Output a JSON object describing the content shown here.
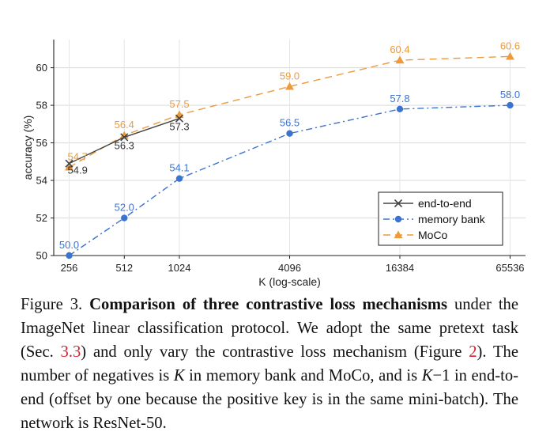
{
  "chart_data": {
    "type": "line",
    "xlabel": "K (log-scale)",
    "ylabel": "accuracy (%)",
    "xscale": "log2",
    "x": [
      256,
      512,
      1024,
      4096,
      16384,
      65536
    ],
    "x_tick_labels": [
      "256",
      "512",
      "1024",
      "4096",
      "16384",
      "65536"
    ],
    "ylim": [
      50,
      61.5
    ],
    "y_ticks": [
      50,
      52,
      54,
      56,
      58,
      60
    ],
    "grid": true,
    "legend_position": "bottom-right",
    "series": [
      {
        "name": "end-to-end",
        "key": "e2e",
        "color": "#444444",
        "marker": "x",
        "dash": "solid",
        "x": [
          256,
          512,
          1024
        ],
        "values": [
          54.9,
          56.3,
          57.3
        ],
        "labels": [
          "54.9",
          "56.3",
          "57.3"
        ]
      },
      {
        "name": "memory bank",
        "key": "mb",
        "color": "#3b73d1",
        "marker": "circle",
        "dash": "dashdot",
        "x": [
          256,
          512,
          1024,
          4096,
          16384,
          65536
        ],
        "values": [
          50.0,
          52.0,
          54.1,
          56.5,
          57.8,
          58.0
        ],
        "labels": [
          "50.0",
          "52.0",
          "54.1",
          "56.5",
          "57.8",
          "58.0"
        ]
      },
      {
        "name": "MoCo",
        "key": "moco",
        "color": "#ec9a3c",
        "marker": "triangle",
        "dash": "dashed",
        "x": [
          256,
          512,
          1024,
          4096,
          16384,
          65536
        ],
        "values": [
          54.7,
          56.4,
          57.5,
          59.0,
          60.4,
          60.6
        ],
        "labels": [
          "54.7",
          "56.4",
          "57.5",
          "59.0",
          "60.4",
          "60.6"
        ]
      }
    ]
  },
  "caption": {
    "label": "Figure 3.",
    "title": "Comparison of three contrastive loss mechanisms",
    "t1": " under the ImageNet linear classification protocol. We adopt the same pretext task (Sec. ",
    "ref1": "3.3",
    "t2": ") and only vary the contrastive loss mechanism (Figure ",
    "ref2": "2",
    "t3": "). The number of negatives is ",
    "k1": "K",
    "t4": " in memory bank and MoCo, and is ",
    "k2": "K",
    "t5": "−1 in end-to-end (offset by one because the positive key is in the same mini-batch). The network is ResNet-50."
  }
}
